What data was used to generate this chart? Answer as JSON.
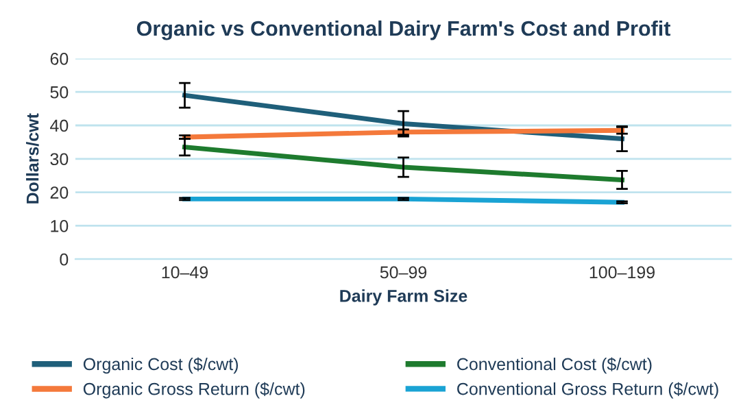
{
  "chart_data": {
    "type": "line",
    "title": "Organic vs Conventional Dairy Farm's Cost and Profit",
    "xlabel": "Dairy Farm Size",
    "ylabel": "Dollars/cwt",
    "categories": [
      "10–49",
      "50–99",
      "100–199"
    ],
    "series": [
      {
        "name": "Organic Cost ($/cwt)",
        "color": "#1f5f7a",
        "values": [
          49,
          40.5,
          36
        ],
        "errors": [
          3.7,
          3.8,
          3.7
        ]
      },
      {
        "name": "Organic Gross Return ($/cwt)",
        "color": "#f4793b",
        "values": [
          36.5,
          38,
          38.5
        ],
        "errors": [
          0.5,
          0.8,
          1
        ]
      },
      {
        "name": "Conventional Cost ($/cwt)",
        "color": "#1e7b2e",
        "values": [
          33.5,
          27.5,
          23.7
        ],
        "errors": [
          2.5,
          2.9,
          2.7
        ]
      },
      {
        "name": "Conventional Gross Return ($/cwt)",
        "color": "#1aa3d4",
        "values": [
          18,
          18,
          17
        ],
        "errors": [
          0.3,
          0.3,
          0.3
        ]
      }
    ],
    "ylim": [
      0,
      60
    ],
    "yticks": [
      0,
      10,
      20,
      30,
      40,
      50,
      60
    ],
    "grid": "y",
    "legend": "bottom",
    "marker": "none"
  }
}
